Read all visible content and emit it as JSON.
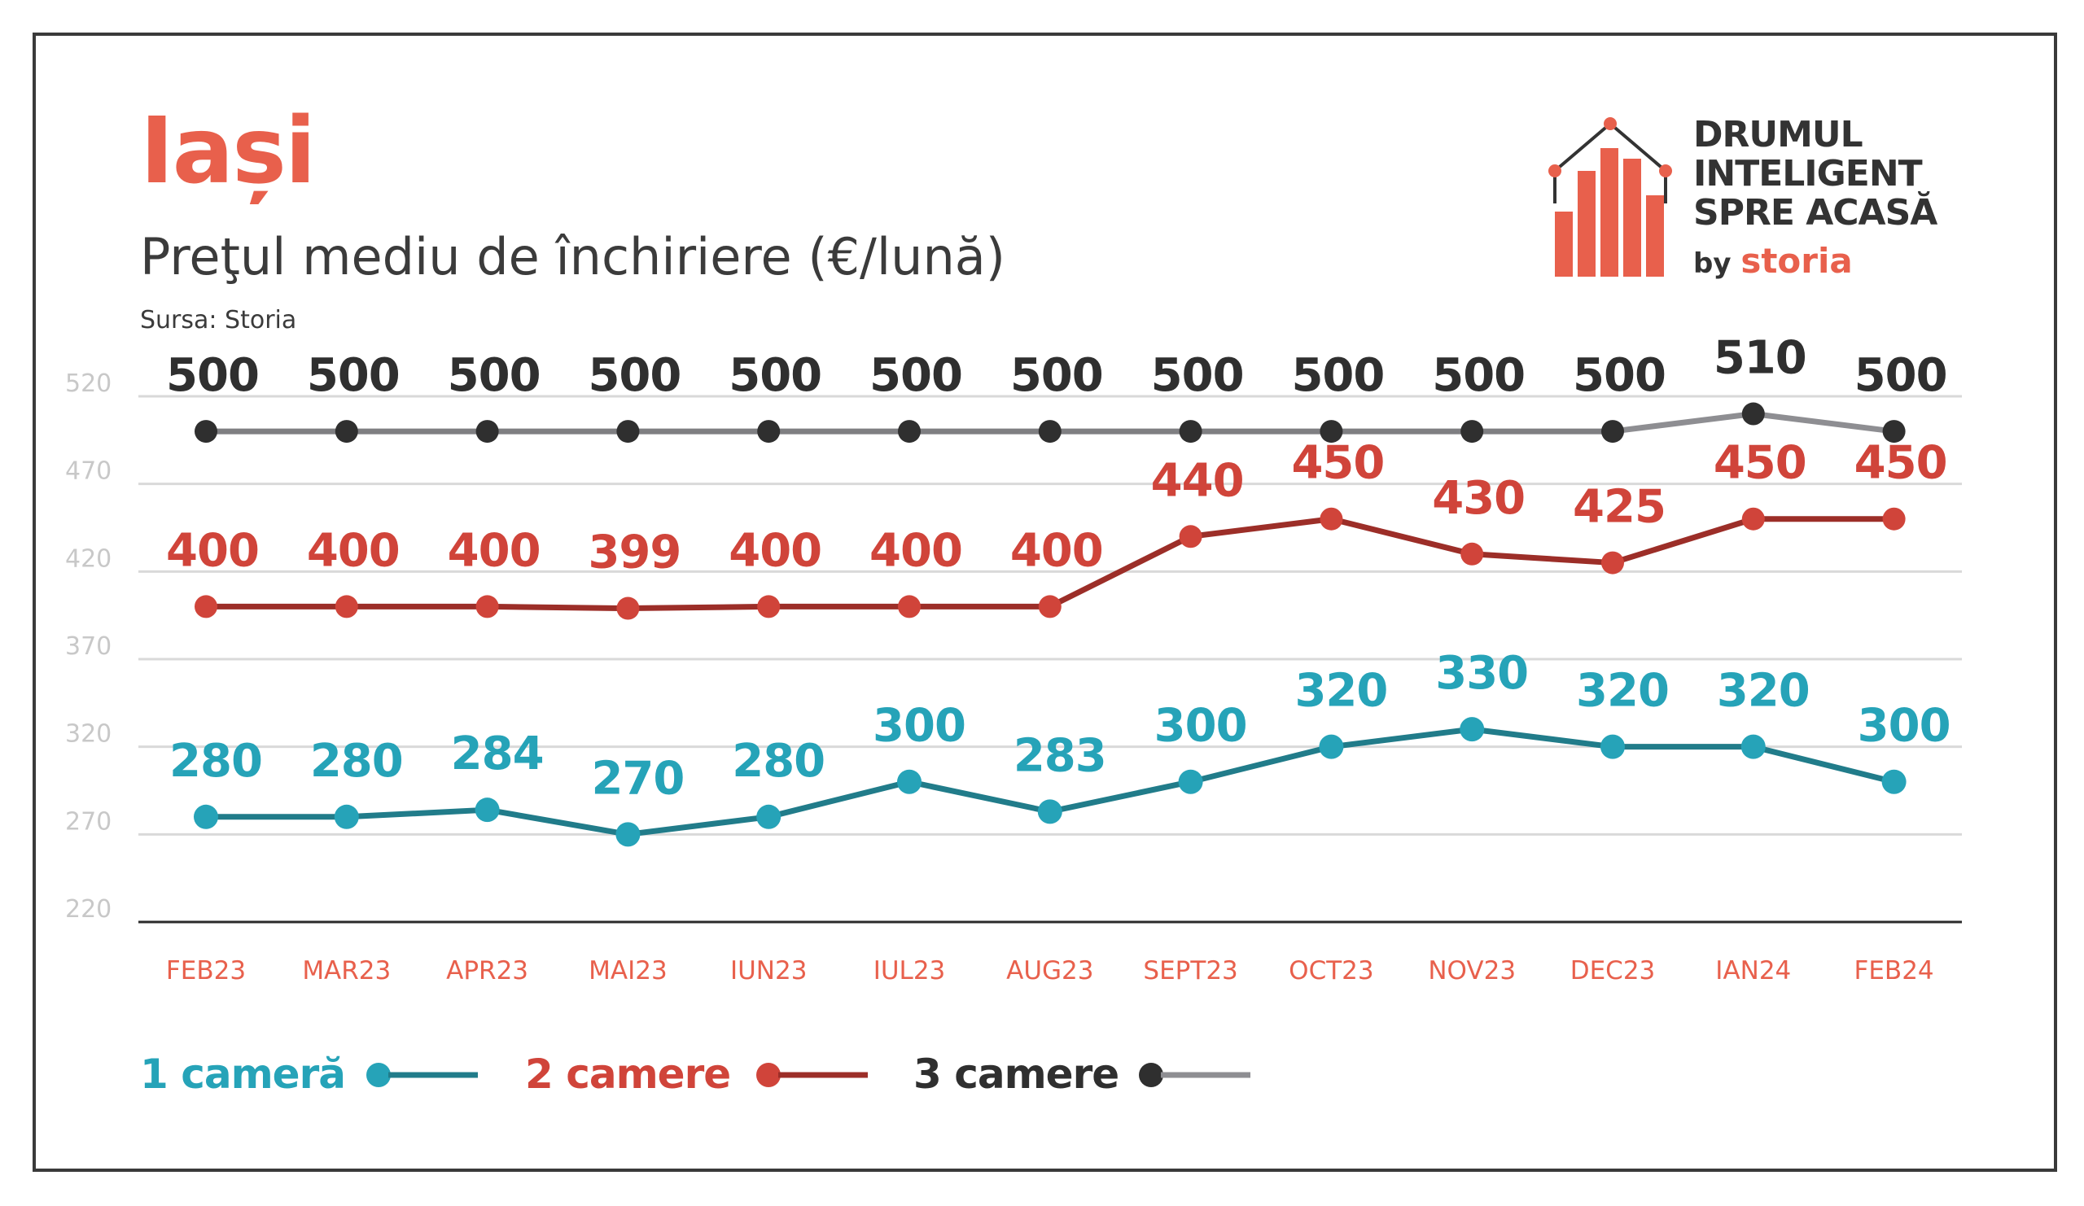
{
  "header": {
    "city": "Iași",
    "subtitle": "Preţul mediu de închiriere (€/lună)",
    "source": "Sursa: Storia"
  },
  "logo": {
    "line1": "DRUMUL",
    "line2": "INTELIGENT",
    "line3": "SPRE ACASĂ",
    "by": "by",
    "brand": "storia"
  },
  "colors": {
    "accent": "#e8604c",
    "teal_text": "#26a3b8",
    "teal_line": "#217c8a",
    "red_text": "#d0443a",
    "red_line": "#9c2e28",
    "grey_text": "#2f2f2f",
    "grey_line": "#7f7f82",
    "grid": "#d9d9d9",
    "axis_tick": "#c8c8c8",
    "axis_category": "#e8604c"
  },
  "chart_data": {
    "type": "line",
    "title": "Preţul mediu de închiriere (€/lună)",
    "categories": [
      "FEB23",
      "MAR23",
      "APR23",
      "MAI23",
      "IUN23",
      "IUL23",
      "AUG23",
      "SEPT23",
      "OCT23",
      "NOV23",
      "DEC23",
      "IAN24",
      "FEB24"
    ],
    "ylim": [
      220,
      520
    ],
    "yticks": [
      220,
      270,
      320,
      370,
      420,
      470,
      520
    ],
    "grid": true,
    "legend_position": "bottom-left",
    "series": [
      {
        "name": "1 cameră",
        "values": [
          280,
          280,
          284,
          270,
          280,
          300,
          283,
          300,
          320,
          330,
          320,
          320,
          300
        ]
      },
      {
        "name": "2 camere",
        "values": [
          400,
          400,
          400,
          399,
          400,
          400,
          400,
          440,
          450,
          430,
          425,
          450,
          450
        ]
      },
      {
        "name": "3 camere",
        "values": [
          500,
          500,
          500,
          500,
          500,
          500,
          500,
          500,
          500,
          500,
          500,
          510,
          500
        ]
      }
    ]
  }
}
